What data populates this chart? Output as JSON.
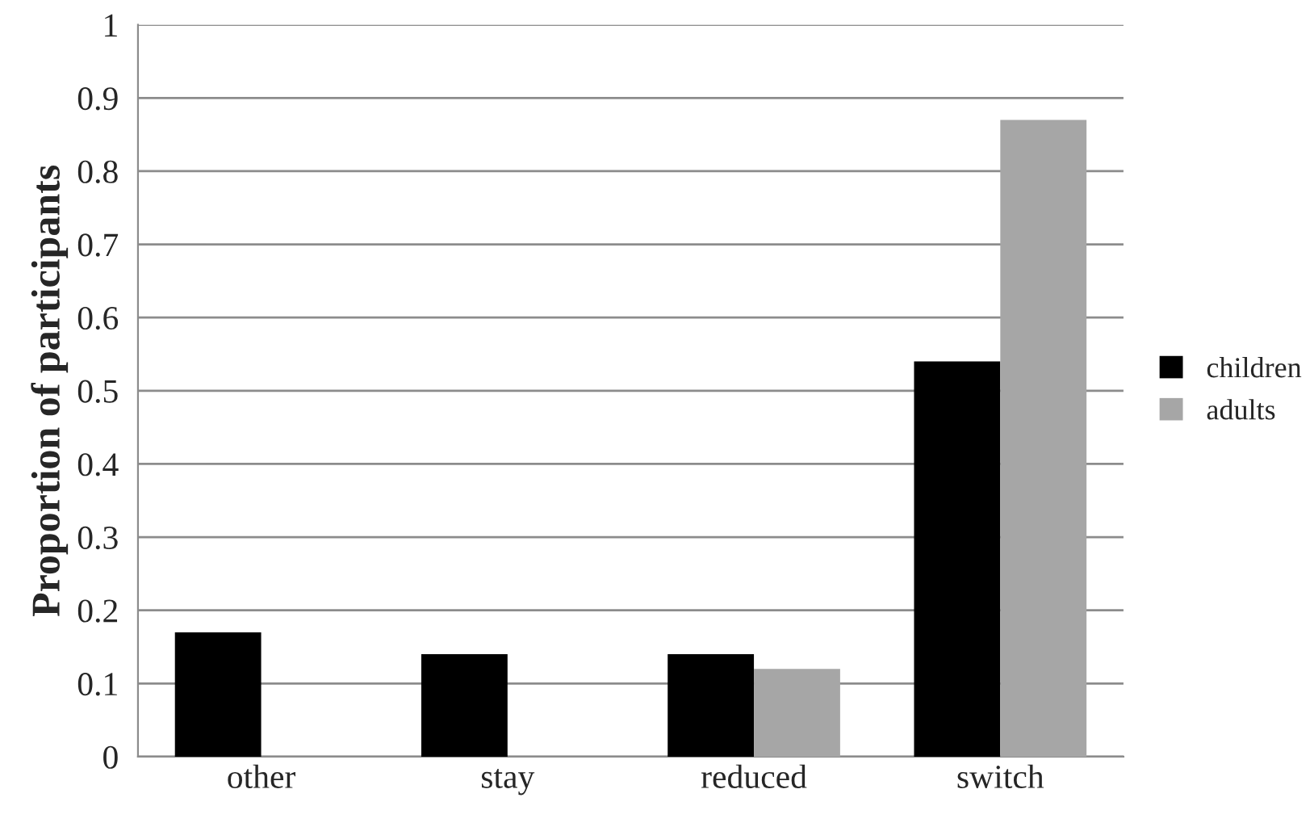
{
  "chart_data": {
    "type": "bar",
    "ylabel": "Proportion of participants",
    "categories": [
      "other",
      "stay",
      "reduced",
      "switch"
    ],
    "series": [
      {
        "name": "children",
        "color": "#000000",
        "values": [
          0.17,
          0.14,
          0.14,
          0.54
        ]
      },
      {
        "name": "adults",
        "color": "#a6a6a6",
        "values": [
          null,
          null,
          0.12,
          0.87
        ]
      }
    ],
    "ylim": [
      0,
      1
    ],
    "yticks": [
      0,
      0.1,
      0.2,
      0.3,
      0.4,
      0.5,
      0.6,
      0.7,
      0.8,
      0.9,
      1
    ],
    "grid": "y",
    "legend": "right"
  }
}
